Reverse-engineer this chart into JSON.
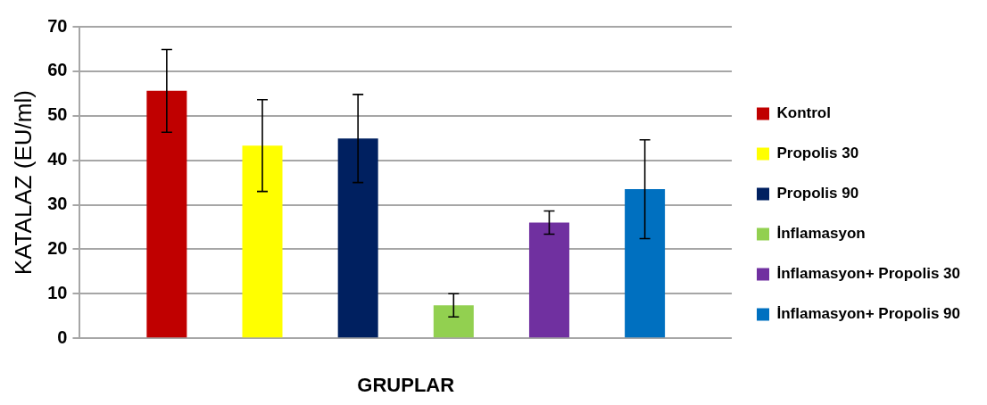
{
  "chart_data": {
    "type": "bar",
    "xlabel": "GRUPLAR",
    "ylabel": "KATALAZ (EU/ml)",
    "categories": [
      null
    ],
    "series": [
      {
        "name": "Kontrol",
        "color": "#c00000",
        "values": [
          55.6
        ],
        "errors": [
          9.3
        ]
      },
      {
        "name": "Propolis 30",
        "color": "#ffff00",
        "values": [
          43.3
        ],
        "errors": [
          10.3
        ]
      },
      {
        "name": "Propolis 90",
        "color": "#002060",
        "values": [
          44.9
        ],
        "errors": [
          9.9
        ]
      },
      {
        "name": "İnflamasyon",
        "color": "#92d050",
        "values": [
          7.4
        ],
        "errors": [
          2.6
        ]
      },
      {
        "name": "İnflamasyon+ Propolis 30",
        "color": "#7030a0",
        "values": [
          26.0
        ],
        "errors": [
          2.6
        ]
      },
      {
        "name": "İnflamasyon+ Propolis 90",
        "color": "#0070c0",
        "values": [
          33.5
        ],
        "errors": [
          11.1
        ]
      }
    ],
    "ylim": [
      0,
      70
    ],
    "yticks": [
      0,
      10,
      20,
      30,
      40,
      50,
      60,
      70
    ],
    "grid": "y",
    "legend": "right"
  }
}
